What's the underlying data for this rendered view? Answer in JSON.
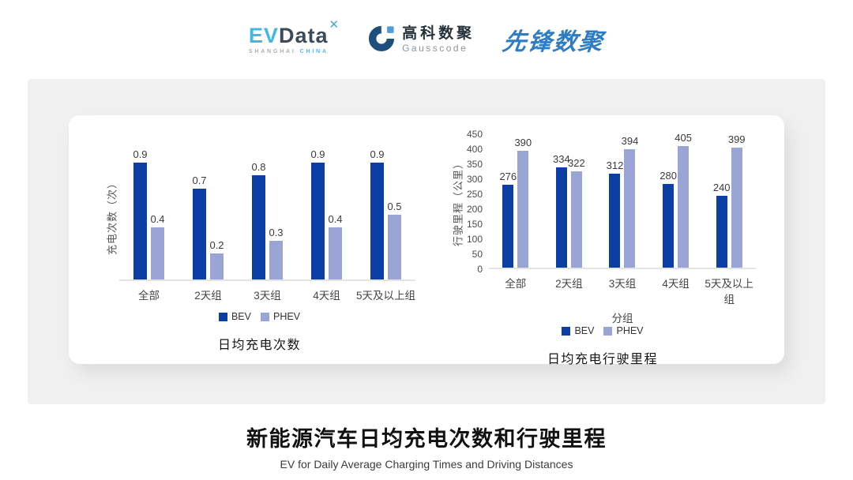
{
  "header": {
    "evdata_logo": {
      "ev": "EV",
      "data": "Data",
      "star": "✕",
      "sub_left": "SHANGHAI",
      "sub_right": "CHINA"
    },
    "gausscode_logo": {
      "cn": "高科数聚",
      "en": "Gausscode"
    },
    "pioneer_logo": {
      "text": "先锋数聚"
    }
  },
  "chart_data": [
    {
      "type": "bar",
      "title": "日均充电次数",
      "ylabel": "充电次数（次）",
      "xlabel": "",
      "categories": [
        "全部",
        "2天组",
        "3天组",
        "4天组",
        "5天及以上组"
      ],
      "series": [
        {
          "name": "BEV",
          "color": "#0c3fa5",
          "values": [
            0.9,
            0.7,
            0.8,
            0.9,
            0.9
          ]
        },
        {
          "name": "PHEV",
          "color": "#9aa5d6",
          "values": [
            0.4,
            0.2,
            0.3,
            0.4,
            0.5
          ]
        }
      ],
      "ylim": [
        0,
        1.0
      ],
      "yticks": [],
      "grid": false,
      "value_labels": true,
      "legend_position": "bottom"
    },
    {
      "type": "bar",
      "title": "日均充电行驶里程",
      "ylabel": "行驶里程（公里）",
      "xlabel": "分组",
      "categories": [
        "全部",
        "2天组",
        "3天组",
        "4天组",
        "5天及以上组"
      ],
      "series": [
        {
          "name": "BEV",
          "color": "#0c3fa5",
          "values": [
            276,
            334,
            312,
            280,
            240
          ]
        },
        {
          "name": "PHEV",
          "color": "#9aa5d6",
          "values": [
            390,
            322,
            394,
            405,
            399
          ]
        }
      ],
      "ylim": [
        0,
        450
      ],
      "yticks": [
        0,
        50,
        100,
        150,
        200,
        250,
        300,
        350,
        400,
        450
      ],
      "grid": false,
      "value_labels": true,
      "legend_position": "bottom"
    }
  ],
  "footer": {
    "title": "新能源汽车日均充电次数和行驶里程",
    "subtitle": "EV for Daily Average Charging Times and Driving Distances"
  },
  "colors": {
    "bev": "#0c3fa5",
    "phev": "#9aa5d6",
    "panel_bg": "#f0f0f1",
    "card_bg": "#ffffff"
  }
}
